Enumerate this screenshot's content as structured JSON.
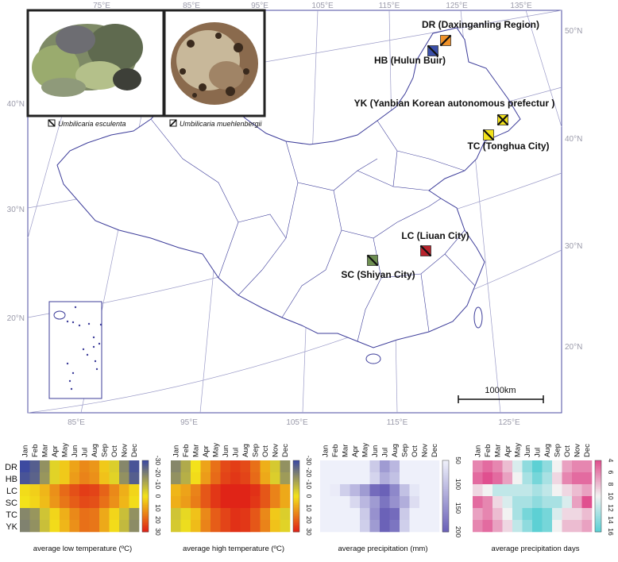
{
  "map": {
    "lon_top": [
      "75°E",
      "85°E",
      "95°E",
      "105°E",
      "115°E",
      "125°E",
      "135°E"
    ],
    "lon_bottom": [
      "85°E",
      "95°E",
      "105°E",
      "115°E",
      "125°E"
    ],
    "lat_left": [
      "40°N",
      "30°N",
      "20°N"
    ],
    "lat_right": [
      "50°N",
      "40°N",
      "30°N",
      "20°N"
    ],
    "scale_label": "1000km",
    "sites": [
      {
        "code": "DR",
        "label": "DR (Daxinganling Region)",
        "color": "#f0922a",
        "species": "umbilicaria-muehlenbergii"
      },
      {
        "code": "HB",
        "label": "HB (Hulun Buir)",
        "color": "#3a4fa8",
        "species": "umbilicaria-esculenta"
      },
      {
        "code": "YK",
        "label": "YK (Yanbian Korean autonomous prefectur )",
        "color": "#f2e21a",
        "species": "both"
      },
      {
        "code": "TC",
        "label": "TC (Tonghua City)",
        "color": "#f2e21a",
        "species": "umbilicaria-esculenta"
      },
      {
        "code": "LC",
        "label": "LC (Liuan City)",
        "color": "#b8232c",
        "species": "umbilicaria-esculenta"
      },
      {
        "code": "SC",
        "label": "SC (Shiyan City)",
        "color": "#6e8f52",
        "species": "umbilicaria-esculenta"
      }
    ],
    "legend": [
      {
        "name": "Umbilicaria esculenta",
        "icon": "backslash-square-icon"
      },
      {
        "name": "Umbilicaria muehlenbergii",
        "icon": "slash-square-icon"
      }
    ]
  },
  "chart_data": [
    {
      "type": "heatmap",
      "title": "average low temperature (ºC)",
      "rows": [
        "DR",
        "HB",
        "LC",
        "SC",
        "TC",
        "YK"
      ],
      "columns": [
        "Jan",
        "Feb",
        "Mar",
        "Apr",
        "May",
        "Jun",
        "Jul",
        "Aug",
        "Sep",
        "Oct",
        "Nov",
        "Dec"
      ],
      "values": [
        [
          -30,
          -26,
          -16,
          -3,
          4,
          10,
          14,
          12,
          4,
          -4,
          -18,
          -28
        ],
        [
          -28,
          -25,
          -15,
          -3,
          4,
          11,
          15,
          13,
          5,
          -3,
          -16,
          -26
        ],
        [
          1,
          3,
          7,
          13,
          19,
          23,
          26,
          25,
          20,
          14,
          8,
          2
        ],
        [
          0,
          2,
          6,
          12,
          17,
          21,
          24,
          23,
          18,
          13,
          7,
          1
        ],
        [
          -18,
          -15,
          -6,
          2,
          8,
          14,
          18,
          17,
          9,
          2,
          -7,
          -16
        ],
        [
          -19,
          -16,
          -7,
          1,
          7,
          13,
          18,
          17,
          9,
          1,
          -8,
          -17
        ]
      ],
      "scale_ticks": [
        -30,
        -20,
        -10,
        0,
        10,
        20,
        30
      ],
      "colors": [
        "#3d4aa0",
        "#f3e21a",
        "#e02417"
      ]
    },
    {
      "type": "heatmap",
      "title": "average high temperature (ºC)",
      "rows": [
        "DR",
        "HB",
        "LC",
        "SC",
        "TC",
        "YK"
      ],
      "columns": [
        "Jan",
        "Feb",
        "Mar",
        "Apr",
        "May",
        "Jun",
        "Jul",
        "Aug",
        "Sep",
        "Oct",
        "Nov",
        "Dec"
      ],
      "values": [
        [
          -18,
          -11,
          0,
          10,
          18,
          24,
          26,
          24,
          18,
          8,
          -5,
          -16
        ],
        [
          -16,
          -10,
          1,
          11,
          19,
          25,
          27,
          25,
          19,
          9,
          -4,
          -14
        ],
        [
          7,
          10,
          15,
          22,
          27,
          31,
          33,
          32,
          28,
          22,
          15,
          9
        ],
        [
          8,
          11,
          16,
          22,
          27,
          31,
          33,
          32,
          27,
          22,
          15,
          9
        ],
        [
          -6,
          -2,
          5,
          14,
          21,
          25,
          28,
          27,
          22,
          14,
          4,
          -4
        ],
        [
          -5,
          -1,
          6,
          15,
          21,
          25,
          28,
          27,
          22,
          15,
          5,
          -3
        ]
      ],
      "scale_ticks": [
        -30,
        -20,
        -10,
        0,
        10,
        20,
        30
      ],
      "colors": [
        "#3d4aa0",
        "#f3e21a",
        "#e02417"
      ]
    },
    {
      "type": "heatmap",
      "title": "average precipitation (mm)",
      "rows": [
        "DR",
        "HB",
        "LC",
        "SC",
        "TC",
        "YK"
      ],
      "columns": [
        "Jan",
        "Feb",
        "Mar",
        "Apr",
        "May",
        "Jun",
        "Jul",
        "Aug",
        "Sep",
        "Oct",
        "Nov",
        "Dec"
      ],
      "values": [
        [
          5,
          5,
          8,
          20,
          40,
          90,
          140,
          110,
          50,
          20,
          8,
          6
        ],
        [
          4,
          4,
          7,
          18,
          35,
          80,
          120,
          100,
          45,
          18,
          7,
          5
        ],
        [
          40,
          55,
          85,
          110,
          140,
          190,
          210,
          160,
          100,
          60,
          45,
          30
        ],
        [
          15,
          25,
          45,
          75,
          110,
          140,
          180,
          150,
          120,
          70,
          30,
          15
        ],
        [
          10,
          15,
          25,
          50,
          90,
          150,
          210,
          190,
          90,
          40,
          25,
          12
        ],
        [
          8,
          12,
          22,
          45,
          85,
          140,
          200,
          180,
          85,
          35,
          22,
          10
        ]
      ],
      "scale_ticks": [
        50,
        100,
        150,
        200
      ],
      "colors": [
        "#eef0fa",
        "#6b62b8"
      ]
    },
    {
      "type": "heatmap",
      "title": "average precipitation days",
      "rows": [
        "DR",
        "HB",
        "LC",
        "SC",
        "TC",
        "YK"
      ],
      "columns": [
        "Jan",
        "Feb",
        "Mar",
        "Apr",
        "May",
        "Jun",
        "Jul",
        "Aug",
        "Sep",
        "Oct",
        "Nov",
        "Dec"
      ],
      "values": [
        [
          6,
          5,
          6,
          8,
          11,
          14,
          16,
          14,
          10,
          7,
          6,
          6
        ],
        [
          5,
          4,
          5,
          7,
          10,
          13,
          15,
          13,
          9,
          6,
          5,
          5
        ],
        [
          9,
          10,
          12,
          12,
          12,
          12,
          13,
          12,
          10,
          9,
          8,
          7
        ],
        [
          5,
          6,
          9,
          11,
          13,
          13,
          14,
          13,
          13,
          11,
          7,
          4
        ],
        [
          7,
          6,
          8,
          10,
          13,
          15,
          16,
          15,
          11,
          9,
          9,
          8
        ],
        [
          6,
          5,
          7,
          9,
          12,
          14,
          16,
          15,
          10,
          8,
          8,
          7
        ]
      ],
      "scale_ticks": [
        4,
        6,
        8,
        10,
        12,
        14,
        16
      ],
      "colors": [
        "#e0508f",
        "#f2f2f2",
        "#5dd0d4"
      ]
    }
  ]
}
